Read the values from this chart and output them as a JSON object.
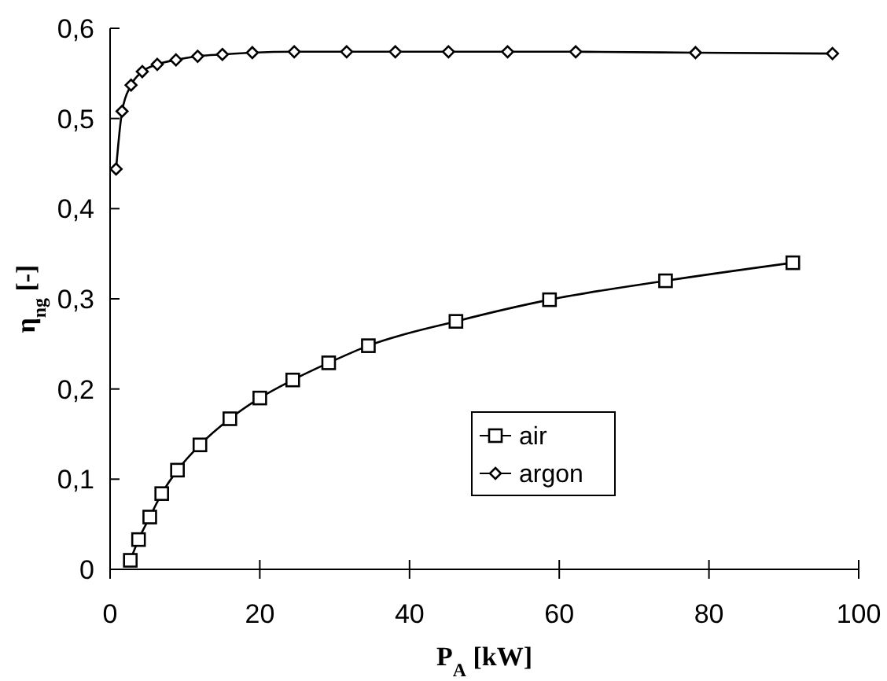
{
  "chart_data": {
    "type": "line",
    "xlabel": "P$_{A}$ [kW]",
    "ylabel": "η$_{ng}$ [-]",
    "xlim": [
      0,
      100
    ],
    "xticks": [
      0,
      20,
      40,
      60,
      80,
      100
    ],
    "ylim": [
      0,
      0.6
    ],
    "yticks": [
      {
        "value": 0,
        "label": "0"
      },
      {
        "value": 0.1,
        "label": "0,1"
      },
      {
        "value": 0.2,
        "label": "0,2"
      },
      {
        "value": 0.3,
        "label": "0,3"
      },
      {
        "value": 0.4,
        "label": "0,4"
      },
      {
        "value": 0.5,
        "label": "0,5"
      },
      {
        "value": 0.6,
        "label": "0,6"
      }
    ],
    "grid": false,
    "legend": "right",
    "line_style": "solid",
    "series": [
      {
        "name": "air",
        "color": "#000000",
        "marker": "square",
        "x": [
          2.7,
          3.8,
          5.3,
          6.9,
          9.0,
          12.0,
          16.0,
          20.0,
          24.4,
          29.2,
          34.5,
          46.2,
          58.7,
          74.2,
          91.2
        ],
        "values": [
          0.01,
          0.033,
          0.058,
          0.084,
          0.11,
          0.138,
          0.167,
          0.19,
          0.21,
          0.229,
          0.248,
          0.275,
          0.299,
          0.32,
          0.34
        ]
      },
      {
        "name": "argon",
        "color": "#000000",
        "marker": "diamond",
        "x": [
          0.8,
          1.6,
          2.8,
          4.3,
          6.3,
          8.8,
          11.7,
          15.0,
          19.0,
          24.6,
          31.6,
          38.1,
          45.2,
          53.1,
          62.2,
          78.2,
          96.5
        ],
        "values": [
          0.444,
          0.508,
          0.537,
          0.552,
          0.56,
          0.565,
          0.569,
          0.571,
          0.573,
          0.574,
          0.574,
          0.574,
          0.574,
          0.574,
          0.574,
          0.573,
          0.572
        ]
      }
    ]
  }
}
